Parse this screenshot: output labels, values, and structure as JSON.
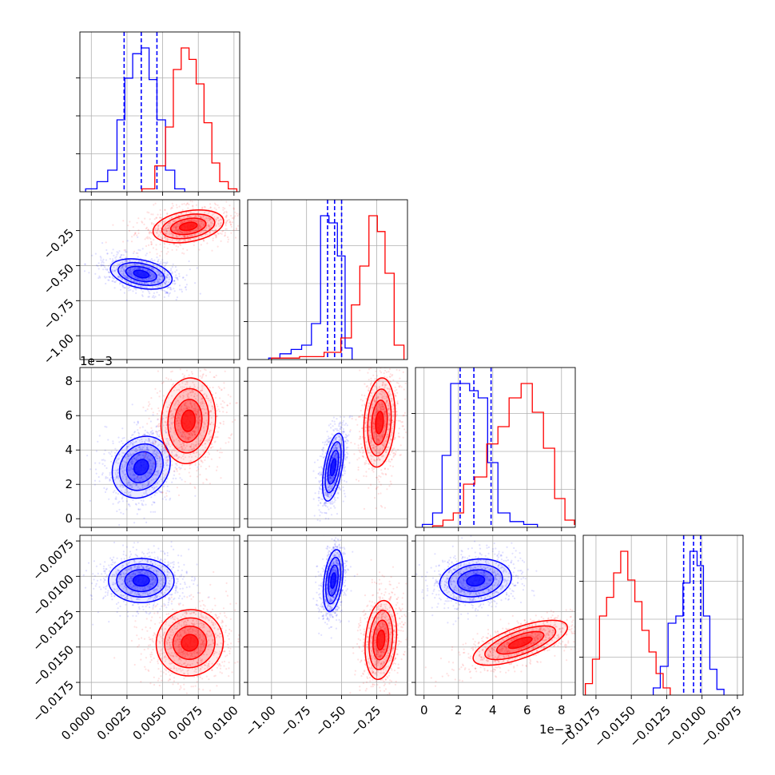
{
  "chart_data": {
    "type": "corner",
    "grid": true,
    "offset_texts": [
      "1e−3",
      "1e−3"
    ],
    "params": [
      {
        "ticks": [
          0.0,
          0.0025,
          0.005,
          0.0075,
          0.01
        ],
        "tick_labels": [
          "0.0000",
          "0.0025",
          "0.0050",
          "0.0075",
          "0.0100"
        ],
        "range": [
          -0.0008,
          0.0104
        ]
      },
      {
        "ticks": [
          -1.0,
          -0.75,
          -0.5,
          -0.25
        ],
        "tick_labels": [
          "−1.00",
          "−0.75",
          "−0.50",
          "−0.25"
        ],
        "range": [
          -1.17,
          -0.03
        ]
      },
      {
        "ticks": [
          0,
          2,
          4,
          6,
          8
        ],
        "tick_labels": [
          "0",
          "2",
          "4",
          "6",
          "8"
        ],
        "range": [
          -0.5,
          8.8
        ]
      },
      {
        "ticks": [
          -0.0175,
          -0.015,
          -0.0125,
          -0.01,
          -0.0075
        ],
        "tick_labels": [
          "−0.0175",
          "−0.0150",
          "−0.0125",
          "−0.0100",
          "−0.0075"
        ],
        "range": [
          -0.0184,
          -0.0071
        ]
      }
    ],
    "series": [
      {
        "color": "#0000ff",
        "quantiles": [
          [
            0.0023,
            0.0035,
            0.0046
          ],
          [
            -0.6,
            -0.55,
            -0.5
          ],
          [
            2.1,
            2.9,
            3.9
          ],
          [
            -0.0113,
            -0.0106,
            -0.0101
          ]
        ],
        "hist": [
          [
            [
              0.0,
              0.02
            ],
            [
              0.0008,
              0.07
            ],
            [
              0.0015,
              0.15
            ],
            [
              0.0021,
              0.5
            ],
            [
              0.0026,
              0.79
            ],
            [
              0.0032,
              0.96
            ],
            [
              0.0038,
              1.0
            ],
            [
              0.0043,
              0.78
            ],
            [
              0.0049,
              0.5
            ],
            [
              0.0055,
              0.15
            ],
            [
              0.0062,
              0.02
            ]
          ],
          [
            [
              -0.98,
              0.01
            ],
            [
              -0.9,
              0.04
            ],
            [
              -0.82,
              0.07
            ],
            [
              -0.75,
              0.1
            ],
            [
              -0.68,
              0.25
            ],
            [
              -0.62,
              1.0
            ],
            [
              -0.56,
              0.95
            ],
            [
              -0.5,
              0.72
            ],
            [
              -0.45,
              0.08
            ]
          ],
          [
            [
              0.2,
              0.02
            ],
            [
              0.8,
              0.1
            ],
            [
              1.3,
              0.5
            ],
            [
              1.8,
              1.0
            ],
            [
              2.4,
              1.0
            ],
            [
              2.9,
              0.95
            ],
            [
              3.4,
              0.9
            ],
            [
              4.0,
              0.45
            ],
            [
              4.6,
              0.1
            ],
            [
              5.4,
              0.04
            ],
            [
              6.2,
              0.02
            ]
          ],
          [
            [
              -0.0132,
              0.05
            ],
            [
              -0.0127,
              0.2
            ],
            [
              -0.0121,
              0.5
            ],
            [
              -0.0116,
              0.55
            ],
            [
              -0.0111,
              0.78
            ],
            [
              -0.0106,
              1.0
            ],
            [
              -0.0101,
              0.9
            ],
            [
              -0.0097,
              0.55
            ],
            [
              -0.0092,
              0.18
            ],
            [
              -0.0087,
              0.04
            ]
          ]
        ],
        "pairs": [
          {
            "x": 0,
            "y": 1,
            "center": [
              0.0035,
              -0.56
            ],
            "sd": [
              0.0011,
              0.05
            ],
            "angle": -12
          },
          {
            "x": 0,
            "y": 2,
            "center": [
              0.0035,
              3.0
            ],
            "sd": [
              0.00095,
              0.95
            ],
            "angle": 55
          },
          {
            "x": 1,
            "y": 2,
            "center": [
              -0.56,
              3.0
            ],
            "sd": [
              0.032,
              1.0
            ],
            "angle": 80
          },
          {
            "x": 0,
            "y": 3,
            "center": [
              0.0035,
              -0.0103
            ],
            "sd": [
              0.00115,
              0.00078
            ],
            "angle": 0
          },
          {
            "x": 1,
            "y": 3,
            "center": [
              -0.56,
              -0.0103
            ],
            "sd": [
              0.033,
              0.0011
            ],
            "angle": 83
          },
          {
            "x": 2,
            "y": 3,
            "center": [
              3.0,
              -0.0103
            ],
            "sd": [
              1.05,
              0.00075
            ],
            "angle": 8
          }
        ]
      },
      {
        "color": "#ff0000",
        "quantiles": null,
        "hist": [
          [
            [
              0.004,
              0.02
            ],
            [
              0.0049,
              0.18
            ],
            [
              0.0055,
              0.45
            ],
            [
              0.006,
              0.85
            ],
            [
              0.0066,
              1.0
            ],
            [
              0.0071,
              0.92
            ],
            [
              0.0076,
              0.75
            ],
            [
              0.0082,
              0.48
            ],
            [
              0.0087,
              0.2
            ],
            [
              0.0093,
              0.07
            ],
            [
              0.0099,
              0.02
            ]
          ],
          [
            [
              -0.9,
              0.01
            ],
            [
              -0.7,
              0.02
            ],
            [
              -0.55,
              0.05
            ],
            [
              -0.46,
              0.15
            ],
            [
              -0.4,
              0.38
            ],
            [
              -0.34,
              0.65
            ],
            [
              -0.27,
              1.0
            ],
            [
              -0.22,
              0.89
            ],
            [
              -0.16,
              0.6
            ],
            [
              -0.09,
              0.1
            ]
          ],
          [
            [
              0.8,
              0.01
            ],
            [
              1.4,
              0.05
            ],
            [
              2.0,
              0.1
            ],
            [
              2.6,
              0.3
            ],
            [
              3.3,
              0.35
            ],
            [
              4.0,
              0.58
            ],
            [
              4.6,
              0.7
            ],
            [
              5.3,
              0.9
            ],
            [
              6.0,
              1.0
            ],
            [
              6.6,
              0.8
            ],
            [
              7.3,
              0.55
            ],
            [
              7.9,
              0.2
            ],
            [
              8.5,
              0.05
            ],
            [
              9.0,
              0.02
            ]
          ],
          [
            [
              -0.018,
              0.08
            ],
            [
              -0.0175,
              0.25
            ],
            [
              -0.017,
              0.55
            ],
            [
              -0.0165,
              0.68
            ],
            [
              -0.016,
              0.85
            ],
            [
              -0.0155,
              1.0
            ],
            [
              -0.015,
              0.8
            ],
            [
              -0.0145,
              0.65
            ],
            [
              -0.014,
              0.45
            ],
            [
              -0.0135,
              0.3
            ],
            [
              -0.013,
              0.15
            ],
            [
              -0.0125,
              0.05
            ]
          ]
        ],
        "pairs": [
          {
            "x": 0,
            "y": 1,
            "center": [
              0.0068,
              -0.22
            ],
            "sd": [
              0.00125,
              0.055
            ],
            "angle": 10
          },
          {
            "x": 0,
            "y": 2,
            "center": [
              0.0068,
              5.7
            ],
            "sd": [
              0.00095,
              1.25
            ],
            "angle": 85
          },
          {
            "x": 1,
            "y": 2,
            "center": [
              -0.23,
              5.6
            ],
            "sd": [
              0.055,
              1.3
            ],
            "angle": 86
          },
          {
            "x": 0,
            "y": 3,
            "center": [
              0.0069,
              -0.0147
            ],
            "sd": [
              0.00115,
              0.0012
            ],
            "angle": 35
          },
          {
            "x": 1,
            "y": 3,
            "center": [
              -0.22,
              -0.0145
            ],
            "sd": [
              0.055,
              0.0014
            ],
            "angle": 85
          },
          {
            "x": 2,
            "y": 3,
            "center": [
              5.6,
              -0.0147
            ],
            "sd": [
              1.45,
              0.00055
            ],
            "angle": 20
          }
        ]
      }
    ]
  }
}
